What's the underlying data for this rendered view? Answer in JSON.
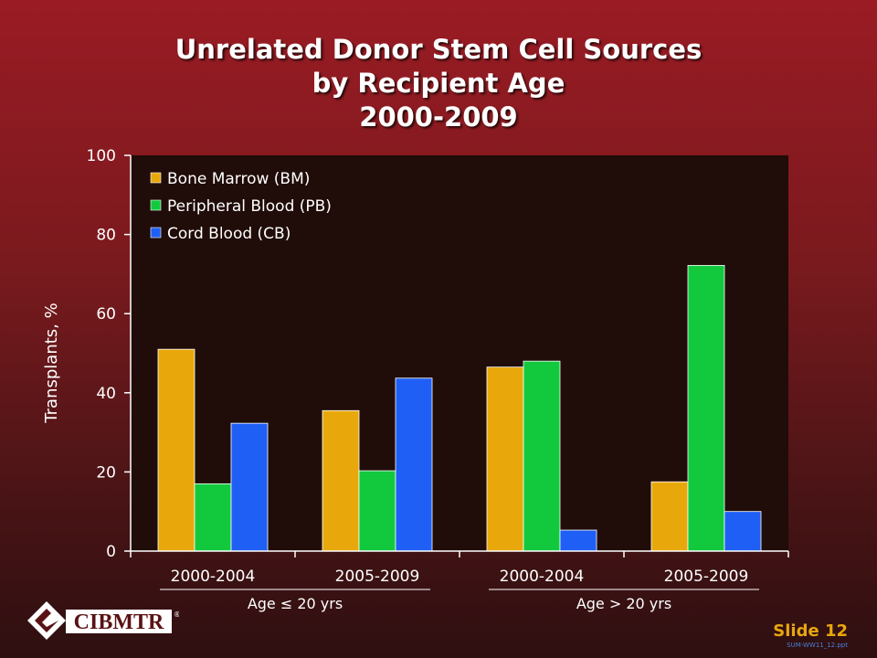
{
  "title": {
    "line1": "Unrelated Donor Stem Cell Sources",
    "line2": "by Recipient Age",
    "line3": "2000-2009"
  },
  "chart_data": {
    "type": "bar",
    "ylabel": "Transplants, %",
    "ylim": [
      0,
      100
    ],
    "yticks": [
      0,
      20,
      40,
      60,
      80,
      100
    ],
    "categories": [
      "2000-2004",
      "2005-2009",
      "2000-2004",
      "2005-2009"
    ],
    "groups": [
      "Age ≤ 20 yrs",
      "Age > 20 yrs"
    ],
    "legend_position": "top-left",
    "grid": false,
    "series": [
      {
        "name": "Bone Marrow (BM)",
        "color": "#e8a80c",
        "values": [
          51,
          35.5,
          46.5,
          17.5
        ]
      },
      {
        "name": "Peripheral Blood (PB)",
        "color": "#12c93e",
        "values": [
          17,
          20.3,
          48,
          72.2
        ]
      },
      {
        "name": "Cord Blood (CB)",
        "color": "#1f5ff5",
        "values": [
          32.3,
          43.7,
          5.3,
          10
        ]
      }
    ]
  },
  "logo": {
    "text": "CIBMTR",
    "mark": "®"
  },
  "footer": {
    "slide": "Slide 12",
    "code": "SUM-WW11_12.ppt"
  }
}
